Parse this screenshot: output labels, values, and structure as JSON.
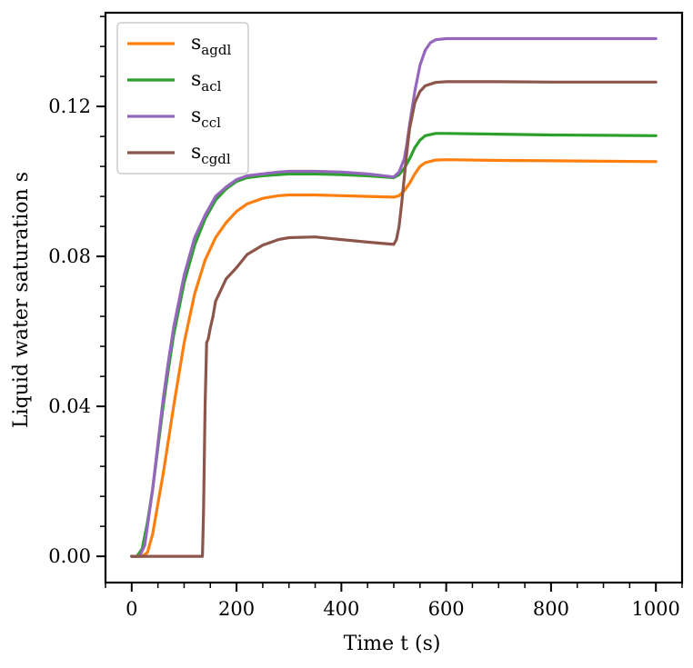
{
  "chart_data": {
    "type": "line",
    "title": "",
    "xlabel": "Time t (s)",
    "ylabel": "Liquid water saturation s",
    "xlim": [
      -50,
      1050
    ],
    "ylim": [
      -0.007,
      0.145
    ],
    "xticks": [
      0,
      200,
      400,
      600,
      800,
      1000
    ],
    "xtick_labels": [
      "0",
      "200",
      "400",
      "600",
      "800",
      "1000"
    ],
    "yticks": [
      0.0,
      0.04,
      0.08,
      0.12
    ],
    "ytick_labels": [
      "0.00",
      "0.04",
      "0.08",
      "0.12"
    ],
    "grid": false,
    "legend_position": "top-left",
    "series": [
      {
        "name": "s_agdl",
        "base": "s",
        "sub": "agdl",
        "color": "#ff7f0e",
        "x": [
          0,
          20,
          30,
          40,
          50,
          60,
          70,
          80,
          100,
          120,
          140,
          160,
          180,
          200,
          220,
          250,
          280,
          300,
          350,
          400,
          450,
          500,
          510,
          520,
          530,
          540,
          550,
          560,
          580,
          600,
          700,
          800,
          900,
          1000
        ],
        "y": [
          0,
          0,
          0.001,
          0.006,
          0.014,
          0.022,
          0.031,
          0.04,
          0.057,
          0.07,
          0.079,
          0.085,
          0.089,
          0.092,
          0.094,
          0.0955,
          0.0962,
          0.0964,
          0.0964,
          0.0962,
          0.096,
          0.0958,
          0.0962,
          0.0975,
          0.0995,
          0.102,
          0.104,
          0.105,
          0.1057,
          0.1058,
          0.1056,
          0.1055,
          0.1054,
          0.1053
        ]
      },
      {
        "name": "s_acl",
        "base": "s",
        "sub": "acl",
        "color": "#2ca02c",
        "x": [
          0,
          10,
          20,
          30,
          40,
          50,
          60,
          70,
          80,
          100,
          120,
          140,
          160,
          180,
          200,
          220,
          250,
          280,
          300,
          350,
          400,
          450,
          500,
          510,
          520,
          530,
          540,
          550,
          560,
          580,
          600,
          700,
          800,
          900,
          1000
        ],
        "y": [
          0,
          0,
          0.002,
          0.009,
          0.018,
          0.029,
          0.04,
          0.05,
          0.059,
          0.073,
          0.083,
          0.09,
          0.095,
          0.098,
          0.1,
          0.101,
          0.1015,
          0.1018,
          0.102,
          0.102,
          0.1018,
          0.1015,
          0.101,
          0.1018,
          0.1035,
          0.106,
          0.109,
          0.111,
          0.1122,
          0.1128,
          0.1128,
          0.1126,
          0.1124,
          0.1123,
          0.1122
        ]
      },
      {
        "name": "s_ccl",
        "base": "s",
        "sub": "ccl",
        "color": "#9467bd",
        "x": [
          0,
          15,
          25,
          30,
          40,
          50,
          60,
          70,
          80,
          100,
          120,
          140,
          160,
          180,
          200,
          220,
          250,
          280,
          300,
          350,
          400,
          450,
          500,
          510,
          520,
          525,
          530,
          540,
          550,
          560,
          570,
          580,
          600,
          700,
          800,
          900,
          1000
        ],
        "y": [
          0,
          0,
          0.003,
          0.008,
          0.018,
          0.03,
          0.042,
          0.052,
          0.061,
          0.075,
          0.085,
          0.091,
          0.096,
          0.0985,
          0.1005,
          0.1015,
          0.102,
          0.1025,
          0.1027,
          0.1027,
          0.1025,
          0.102,
          0.1012,
          0.1025,
          0.106,
          0.11,
          0.115,
          0.124,
          0.131,
          0.135,
          0.137,
          0.1378,
          0.1381,
          0.1381,
          0.1381,
          0.1381,
          0.1381
        ]
      },
      {
        "name": "s_cgdl",
        "base": "s",
        "sub": "cgdl",
        "color": "#8c564b",
        "x": [
          0,
          135,
          137,
          140,
          143,
          146,
          150,
          155,
          160,
          170,
          180,
          200,
          220,
          250,
          280,
          300,
          350,
          400,
          450,
          500,
          505,
          510,
          515,
          520,
          525,
          530,
          540,
          550,
          560,
          580,
          600,
          700,
          800,
          900,
          1000
        ],
        "y": [
          0,
          0,
          0.012,
          0.04,
          0.057,
          0.058,
          0.061,
          0.064,
          0.068,
          0.071,
          0.074,
          0.077,
          0.0805,
          0.083,
          0.0845,
          0.085,
          0.0852,
          0.0845,
          0.0838,
          0.0832,
          0.0845,
          0.088,
          0.094,
          0.101,
          0.108,
          0.114,
          0.121,
          0.124,
          0.1255,
          0.1264,
          0.1266,
          0.1266,
          0.1265,
          0.1265,
          0.1265
        ]
      }
    ]
  }
}
